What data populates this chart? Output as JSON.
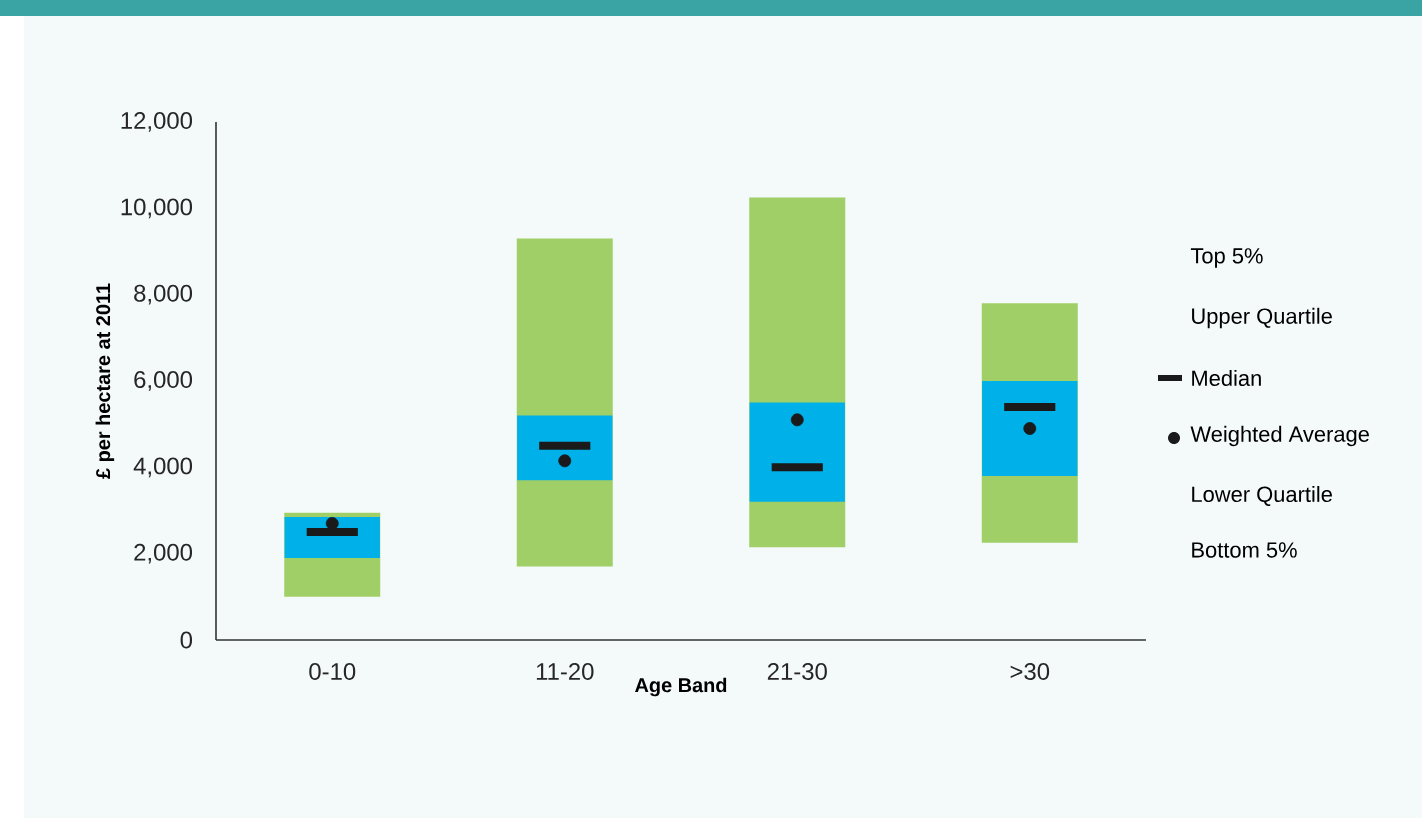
{
  "chart_data": {
    "type": "box",
    "xlabel": "Age Band",
    "ylabel": "£ per hectare at 2011",
    "categories": [
      "0-10",
      "11-20",
      "21-30",
      ">30"
    ],
    "boxes": [
      {
        "low": 1000,
        "q1": 1900,
        "median": 2500,
        "q3": 2850,
        "high": 2950,
        "mean": 2700
      },
      {
        "low": 1700,
        "q1": 3700,
        "median": 4500,
        "q3": 5200,
        "high": 9300,
        "mean": 4150
      },
      {
        "low": 2150,
        "q1": 3200,
        "median": 4000,
        "q3": 5500,
        "high": 10250,
        "mean": 5100
      },
      {
        "low": 2250,
        "q1": 3800,
        "median": 5400,
        "q3": 6000,
        "high": 7800,
        "mean": 4900
      }
    ],
    "color": "#00b0e8",
    "ylim": [
      0,
      12000
    ],
    "yticks": [
      0,
      {
        "value": 2000,
        "label": "2,000"
      },
      {
        "value": 4000,
        "label": "4,000"
      },
      {
        "value": 6000,
        "label": "6,000"
      },
      {
        "value": 8000,
        "label": "8,000"
      },
      {
        "value": 10000,
        "label": "10,000"
      },
      {
        "value": 12000,
        "label": "12,000"
      }
    ],
    "grid": false,
    "annotations": [
      "Top 5%",
      "Upper Quartile",
      "Median",
      "Weighted Average",
      "Lower Quartile",
      "Bottom 5%"
    ]
  }
}
